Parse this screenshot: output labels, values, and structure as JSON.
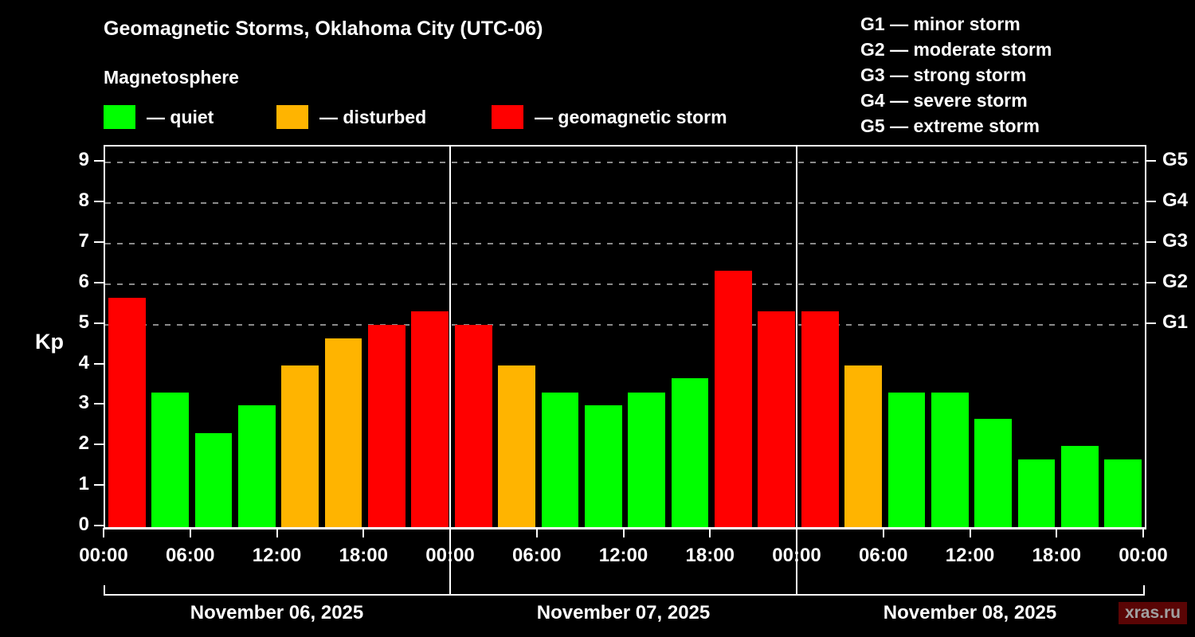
{
  "header": {
    "title": "Geomagnetic Storms, Oklahoma City (UTC-06)",
    "subtitle": "Magnetosphere"
  },
  "legend": {
    "items": [
      {
        "name": "quiet",
        "label": "— quiet",
        "color": "#00ff00"
      },
      {
        "name": "disturbed",
        "label": "— disturbed",
        "color": "#ffb400"
      },
      {
        "name": "storm",
        "label": "— geomagnetic storm",
        "color": "#ff0000"
      }
    ]
  },
  "storm_scale": {
    "items": [
      "G1 — minor storm",
      "G2 — moderate storm",
      "G3 — strong storm",
      "G4 — severe storm",
      "G5 — extreme storm"
    ]
  },
  "chart_data": {
    "type": "bar",
    "title": "Geomagnetic Storms, Oklahoma City (UTC-06)",
    "ylabel": "Kp",
    "ylim": [
      0,
      9.4
    ],
    "yticks": [
      0,
      1,
      2,
      3,
      4,
      5,
      6,
      7,
      8,
      9
    ],
    "gridlines": [
      5,
      6,
      7,
      8,
      9
    ],
    "right_ticks": [
      {
        "value": 5,
        "label": "G1"
      },
      {
        "value": 6,
        "label": "G2"
      },
      {
        "value": 7,
        "label": "G3"
      },
      {
        "value": 8,
        "label": "G4"
      },
      {
        "value": 9,
        "label": "G5"
      }
    ],
    "x_tick_labels": [
      "00:00",
      "06:00",
      "12:00",
      "18:00",
      "00:00",
      "06:00",
      "12:00",
      "18:00",
      "00:00",
      "06:00",
      "12:00",
      "18:00",
      "00:00"
    ],
    "bar_interval_hours": 3,
    "days": [
      {
        "date": "November 06, 2025",
        "values": [
          5.67,
          3.33,
          2.33,
          3.0,
          4.0,
          4.67,
          5.0,
          5.33
        ]
      },
      {
        "date": "November 07, 2025",
        "values": [
          5.0,
          4.0,
          3.33,
          3.0,
          3.33,
          3.67,
          6.33,
          5.33
        ]
      },
      {
        "date": "November 08, 2025",
        "values": [
          5.33,
          4.0,
          3.33,
          3.33,
          2.67,
          1.67,
          2.0,
          1.67
        ]
      }
    ],
    "colors": {
      "quiet": "#00ff00",
      "disturbed": "#ffb400",
      "storm": "#ff0000"
    },
    "thresholds": {
      "disturbed_min": 4,
      "storm_min": 5
    },
    "legend_position": "top-left",
    "grid": "dashed horizontal at G levels only"
  },
  "watermark": "xras.ru"
}
